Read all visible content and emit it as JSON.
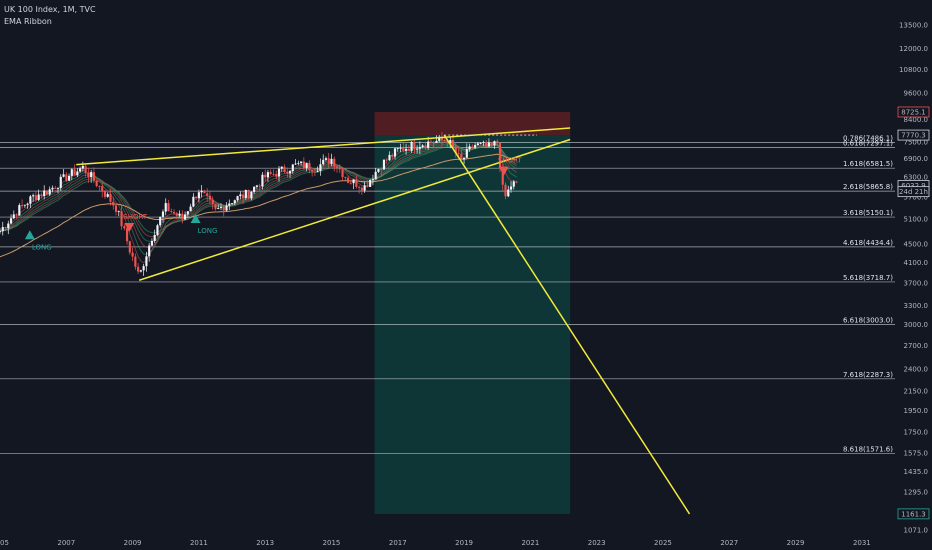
{
  "legend": {
    "symbol_line": "UK 100 Index, 1M, TVC",
    "indicator": "EMA Ribbon"
  },
  "colors": {
    "background": "#131722",
    "up_candle": "#f0f3fa",
    "down_candle": "#ef5350",
    "trendline": "#f2ea3a",
    "ema200": "#c79a6a",
    "ribbon_bull": "#2e9e6e",
    "ribbon_bear": "#c0504d",
    "stop_zone": "#5a1f22",
    "target_zone": "#0f3a38",
    "long_marker": "#26a69a",
    "short_marker": "#ef5350",
    "fib_line": "#d1d4dc"
  },
  "chart_data": {
    "type": "candlestick",
    "y_scale": "log",
    "ylim": [
      1071,
      15000
    ],
    "xlim": [
      2005.0,
      2032.0
    ],
    "y_ticks": [
      "15000.0",
      "13500.0",
      "12000.0",
      "10800.0",
      "9600.0",
      "8400.0",
      "7500.0",
      "6900.0",
      "6300.0",
      "5700.0",
      "5100.0",
      "4500.0",
      "4100.0",
      "3700.0",
      "3300.0",
      "3000.0",
      "2700.0",
      "2400.0",
      "2150.0",
      "1950.0",
      "1750.0",
      "1575.0",
      "1435.0",
      "1295.0",
      "1165.0",
      "1071.0"
    ],
    "x_ticks": [
      "2005",
      "2007",
      "2009",
      "2011",
      "2013",
      "2015",
      "2017",
      "2019",
      "2021",
      "2023",
      "2025",
      "2027",
      "2029",
      "2031"
    ],
    "price_labels": [
      {
        "text": "8725.1",
        "value": 8725.1,
        "color": "#ef5350"
      },
      {
        "text": "7770.3",
        "value": 7770.3,
        "color": "#d1d4dc"
      },
      {
        "text": "6032.9",
        "value": 6032.9,
        "color": "#d1d4dc"
      },
      {
        "text": "24d 21h",
        "value": 5850,
        "color": "#d1d4dc"
      },
      {
        "text": "1161.3",
        "value": 1161.3,
        "color": "#26a69a"
      }
    ],
    "fib_levels": [
      {
        "label": "0.786(7486.1)",
        "value": 7486.1
      },
      {
        "label": "0.618(7297.1)",
        "value": 7297.1
      },
      {
        "label": "1.618(6581.5)",
        "value": 6581.5
      },
      {
        "label": "2.618(5865.8)",
        "value": 5865.8
      },
      {
        "label": "3.618(5150.1)",
        "value": 5150.1
      },
      {
        "label": "4.618(4434.4)",
        "value": 4434.4
      },
      {
        "label": "5.618(3718.7)",
        "value": 3718.7
      },
      {
        "label": "6.618(3003.0)",
        "value": 3003.0
      },
      {
        "label": "7.618(2287.3)",
        "value": 2287.3
      },
      {
        "label": "8.618(1571.6)",
        "value": 1571.6
      }
    ],
    "position": {
      "entry": 7770.3,
      "stop": 8725.1,
      "target": 1161.3,
      "start_x": 2016.3,
      "end_x": 2020.4
    },
    "trendlines": [
      {
        "name": "upper-resistance",
        "x1": 2007.3,
        "y1": 6700,
        "x2": 2022.2,
        "y2": 8050
      },
      {
        "name": "lower-support",
        "x1": 2009.2,
        "y1": 3750,
        "x2": 2022.2,
        "y2": 7600
      },
      {
        "name": "projection",
        "x1": 2018.4,
        "y1": 7770,
        "x2": 2025.8,
        "y2": 1161
      }
    ],
    "signals": [
      {
        "type": "LONG",
        "x": 2005.9,
        "y": 4700
      },
      {
        "type": "SHORT",
        "x": 2008.9,
        "y": 4900
      },
      {
        "type": "LONG",
        "x": 2010.9,
        "y": 5100
      },
      {
        "type": "SHORT",
        "x": 2020.2,
        "y": 6500
      }
    ],
    "annual_closes": [
      {
        "year": 2005,
        "value": 4800
      },
      {
        "year": 2005.5,
        "value": 5300
      },
      {
        "year": 2006,
        "value": 5700
      },
      {
        "year": 2006.5,
        "value": 5900
      },
      {
        "year": 2007,
        "value": 6300
      },
      {
        "year": 2007.5,
        "value": 6600
      },
      {
        "year": 2008,
        "value": 6000
      },
      {
        "year": 2008.5,
        "value": 5400
      },
      {
        "year": 2008.9,
        "value": 4400
      },
      {
        "year": 2009.2,
        "value": 3800
      },
      {
        "year": 2009.6,
        "value": 4700
      },
      {
        "year": 2010,
        "value": 5400
      },
      {
        "year": 2010.5,
        "value": 5100
      },
      {
        "year": 2011,
        "value": 5900
      },
      {
        "year": 2011.5,
        "value": 5300
      },
      {
        "year": 2012,
        "value": 5600
      },
      {
        "year": 2012.5,
        "value": 5800
      },
      {
        "year": 2013,
        "value": 6300
      },
      {
        "year": 2013.5,
        "value": 6500
      },
      {
        "year": 2014,
        "value": 6700
      },
      {
        "year": 2014.5,
        "value": 6600
      },
      {
        "year": 2015,
        "value": 6900
      },
      {
        "year": 2015.5,
        "value": 6200
      },
      {
        "year": 2016,
        "value": 6000
      },
      {
        "year": 2016.5,
        "value": 6700
      },
      {
        "year": 2017,
        "value": 7200
      },
      {
        "year": 2017.5,
        "value": 7400
      },
      {
        "year": 2018,
        "value": 7500
      },
      {
        "year": 2018.5,
        "value": 7600
      },
      {
        "year": 2018.9,
        "value": 6800
      },
      {
        "year": 2019.3,
        "value": 7400
      },
      {
        "year": 2019.8,
        "value": 7300
      },
      {
        "year": 2020.0,
        "value": 7500
      },
      {
        "year": 2020.2,
        "value": 5600
      },
      {
        "year": 2020.45,
        "value": 6100
      },
      {
        "year": 2020.6,
        "value": 6032.9
      }
    ]
  }
}
